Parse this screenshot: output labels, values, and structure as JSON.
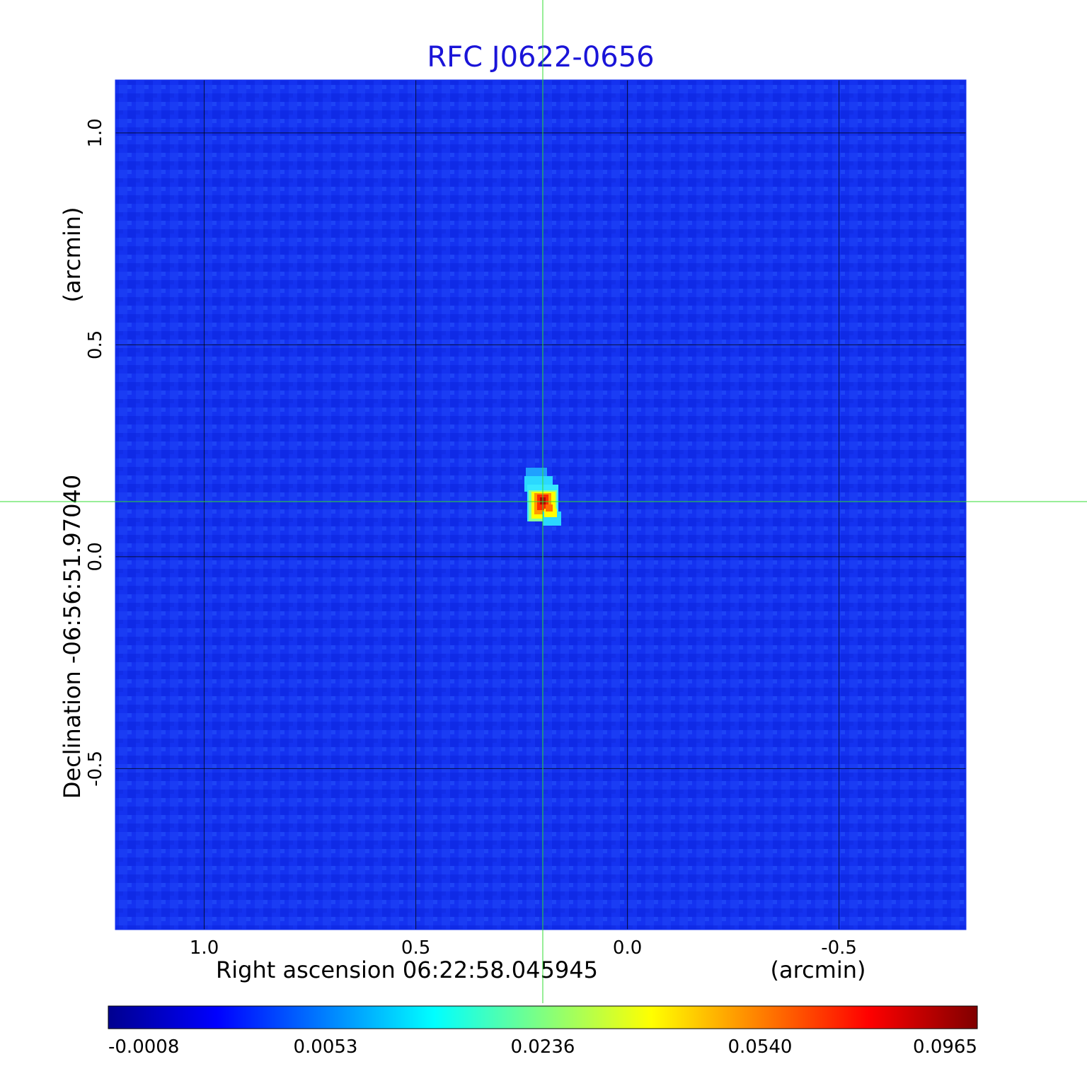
{
  "chart_data": {
    "type": "heatmap",
    "title": "RFC J0622-0656",
    "xlabel": "Right ascension  06:22:58.045945",
    "xunit": "(arcmin)",
    "ylabel": "Declination  -06:56:51.97040",
    "yunit": "(arcmin)",
    "xlim": [
      1.21,
      -0.8
    ],
    "ylim": [
      -0.88,
      1.125
    ],
    "x_ticks": [
      1.0,
      0.5,
      0.0,
      -0.5
    ],
    "x_tick_labels": [
      "1.0",
      "0.5",
      "0.0",
      "-0.5"
    ],
    "y_ticks": [
      1.0,
      0.5,
      0.0,
      -0.5
    ],
    "y_tick_labels": [
      "1.0",
      "0.5",
      "0.0",
      "-0.5"
    ],
    "grid": true,
    "crosshair": {
      "x": 0.2,
      "y": 0.13,
      "color": "#33dd33"
    },
    "source_peak": {
      "x": 0.2,
      "y": 0.13,
      "value": 0.0965
    },
    "colorscale": "jet",
    "colorbar": {
      "orientation": "horizontal",
      "position": "bottom",
      "tick_labels": [
        "-0.0008",
        "0.0053",
        "0.0236",
        "0.0540",
        "0.0965"
      ]
    },
    "colors": {
      "title": "#1a14d8",
      "grid": "#000000",
      "crosshair": "#33dd33",
      "background_map": "#1432f0"
    }
  }
}
